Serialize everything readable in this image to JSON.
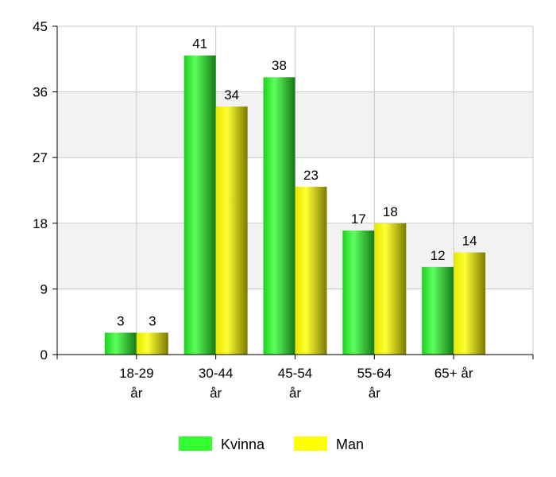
{
  "chart_data": {
    "type": "bar",
    "title": "",
    "xlabel": "",
    "ylabel": "",
    "categories": [
      [
        "18-29",
        "år"
      ],
      [
        "30-44",
        "år"
      ],
      [
        "45-54",
        "år"
      ],
      [
        "55-64",
        "år"
      ],
      [
        "65+ år"
      ]
    ],
    "series": [
      {
        "name": "Kvinna",
        "values": [
          3,
          41,
          38,
          17,
          12
        ],
        "color": "#33ff33"
      },
      {
        "name": "Man",
        "values": [
          3,
          34,
          23,
          18,
          14
        ],
        "color": "#ffff00"
      }
    ],
    "ylim": [
      0,
      45
    ],
    "yticks": [
      0,
      9,
      18,
      27,
      36,
      45
    ],
    "grid": true,
    "band_color": "#f2f2f2",
    "legend_position": "bottom"
  }
}
